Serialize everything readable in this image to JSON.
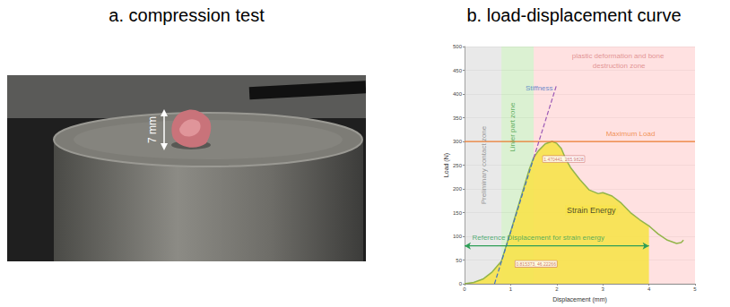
{
  "panels": [
    {
      "title": "a. compression test",
      "annotation": "7 mm"
    },
    {
      "title": "b. load-displacement curve"
    }
  ],
  "chart_data": {
    "type": "line",
    "x_label": "Displacement (mm)",
    "y_label": "Load (N)",
    "xlim": [
      0,
      5
    ],
    "xticks": [
      0,
      1,
      2,
      3,
      4,
      5
    ],
    "ylim": [
      0,
      500
    ],
    "yticks": [
      0,
      50,
      100,
      150,
      200,
      250,
      300,
      350,
      400,
      450,
      500
    ],
    "grid": true,
    "x": [
      0,
      0.2,
      0.4,
      0.6,
      0.8,
      1.0,
      1.2,
      1.4,
      1.5,
      1.6,
      1.75,
      1.9,
      2.0,
      2.1,
      2.2,
      2.3,
      2.5,
      2.7,
      2.9,
      3.0,
      3.2,
      3.4,
      3.6,
      3.8,
      4.0,
      4.2,
      4.4,
      4.6,
      4.7,
      4.75
    ],
    "series": [
      {
        "name": "Load",
        "color": "#93b54a",
        "values": [
          0,
          3,
          10,
          25,
          48,
          110,
          175,
          240,
          266,
          280,
          295,
          300,
          296,
          285,
          262,
          245,
          220,
          198,
          190,
          192,
          185,
          170,
          150,
          135,
          122,
          105,
          92,
          85,
          87,
          92
        ]
      }
    ],
    "zones": [
      {
        "label": "Preliminary contact zone",
        "x": [
          0,
          0.8
        ],
        "color": "#c8c8c8",
        "text_color": "#7f7f7f",
        "label_at": [
          0.42,
          250
        ]
      },
      {
        "label": "Linier part zone",
        "x": [
          0.8,
          1.5
        ],
        "color": "#a6dd8f",
        "text_color": "#3a9a3a",
        "label_at": [
          1.05,
          330
        ]
      },
      {
        "label": "plastic deformation and bone destruction zone",
        "x": [
          1.5,
          5
        ],
        "color": "#ffb3b3",
        "text_color": "#d98080",
        "label_at": [
          3.35,
          470
        ]
      }
    ],
    "strain_energy": {
      "label": "Strain Energy",
      "x": [
        0,
        4
      ],
      "color": "#f7e34b",
      "label_at": [
        2.75,
        155
      ]
    },
    "reference_displacement": {
      "label": "Reference Displacement for strain energy",
      "x": [
        0,
        4
      ],
      "y": 80,
      "color": "#2e9e57",
      "label_at": [
        1.6,
        97
      ]
    },
    "maximum_load": {
      "label": "Maximum Load",
      "value": 300,
      "color": "#ed7d31",
      "label_at": [
        3.6,
        316
      ]
    },
    "stiffness": {
      "label": "Stiffness",
      "x": [
        0.65,
        1.5,
        2.0
      ],
      "y": [
        0,
        265,
        420
      ],
      "colors": [
        "#4472c4",
        "#9b59b6"
      ],
      "label_at": [
        1.62,
        412
      ]
    },
    "point_labels": [
      {
        "label": "1.470441, 265.9828",
        "label_at": [
          2.15,
          263
        ]
      },
      {
        "label": "0.815373, 46.22266",
        "label_at": [
          1.55,
          42
        ]
      }
    ]
  }
}
